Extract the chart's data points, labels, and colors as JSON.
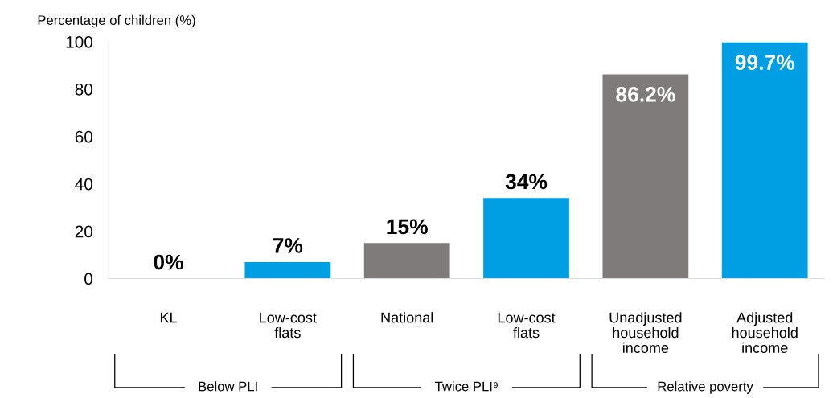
{
  "chart_data": {
    "type": "bar",
    "ylabel": "Percentage of children (%)",
    "categories": [
      "KL",
      "Low-cost\nflats",
      "National",
      "Low-cost\nflats",
      "Unadjusted\nhousehold\nincome",
      "Adjusted\nhousehold\nincome"
    ],
    "values": [
      0,
      7,
      15,
      34,
      86.2,
      99.7
    ],
    "colors": [
      "#7f7b7b",
      "#009fe3",
      "#7f7b7b",
      "#009fe3",
      "#7f7b7b",
      "#009fe3"
    ],
    "value_labels": [
      "0%",
      "7%",
      "15%",
      "34%",
      "86.2%",
      "99.7%"
    ],
    "ylim": [
      0,
      100
    ],
    "yticks": [
      0,
      20,
      40,
      60,
      80,
      100
    ],
    "grid": false,
    "annotations": [
      "Below PLI",
      "Twice PLI⁹",
      "Relative poverty"
    ]
  }
}
